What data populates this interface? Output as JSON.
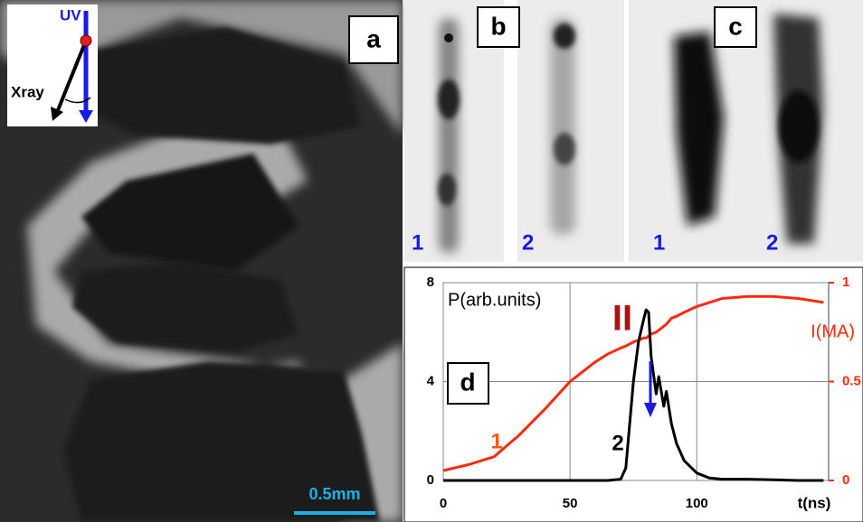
{
  "panels": {
    "a": {
      "label": "a",
      "uv": "UV",
      "xray": "Xray",
      "scale": "0.5mm"
    },
    "b": {
      "label": "b",
      "items": [
        "1",
        "2"
      ]
    },
    "c": {
      "label": "c",
      "items": [
        "1",
        "2"
      ]
    }
  },
  "chart_data": {
    "type": "line",
    "panel_label": "d",
    "y_label": "P(arb.units)",
    "y2_label": "I(MA)",
    "x_label": "t(ns)",
    "annotations": [
      "II",
      "1",
      "2"
    ],
    "x": [
      0,
      10,
      20,
      30,
      40,
      50,
      60,
      65,
      70,
      72,
      75,
      77,
      79,
      80,
      81,
      82,
      84,
      85,
      87,
      88,
      90,
      92,
      95,
      100,
      105,
      110,
      120,
      130,
      140,
      150
    ],
    "series": [
      {
        "name": "1",
        "color": "#ff2a0a",
        "axis": "y2",
        "values": [
          0.05,
          0.08,
          0.12,
          0.23,
          0.36,
          0.5,
          0.6,
          0.64,
          0.67,
          0.68,
          0.7,
          0.71,
          0.72,
          0.72,
          0.73,
          0.74,
          0.75,
          0.76,
          0.78,
          0.79,
          0.82,
          0.83,
          0.85,
          0.88,
          0.9,
          0.92,
          0.93,
          0.93,
          0.92,
          0.9
        ]
      },
      {
        "name": "2",
        "color": "#000000",
        "values": [
          0,
          0,
          0,
          0,
          0,
          0,
          0,
          0,
          0.05,
          0.5,
          4,
          5.6,
          6.5,
          6.9,
          6.8,
          5,
          3.5,
          4.2,
          3,
          3.6,
          2.3,
          1.5,
          0.8,
          0.3,
          0.1,
          0.05,
          0.05,
          0.03,
          0,
          0
        ]
      }
    ],
    "xlim": [
      0,
      152
    ],
    "xticks": [
      0,
      50,
      100
    ],
    "ylim": [
      0,
      8
    ],
    "yticks": [
      0,
      4,
      8
    ],
    "y2lim": [
      0,
      1
    ],
    "y2ticks": [
      0,
      0.5,
      1
    ],
    "grid": true
  }
}
